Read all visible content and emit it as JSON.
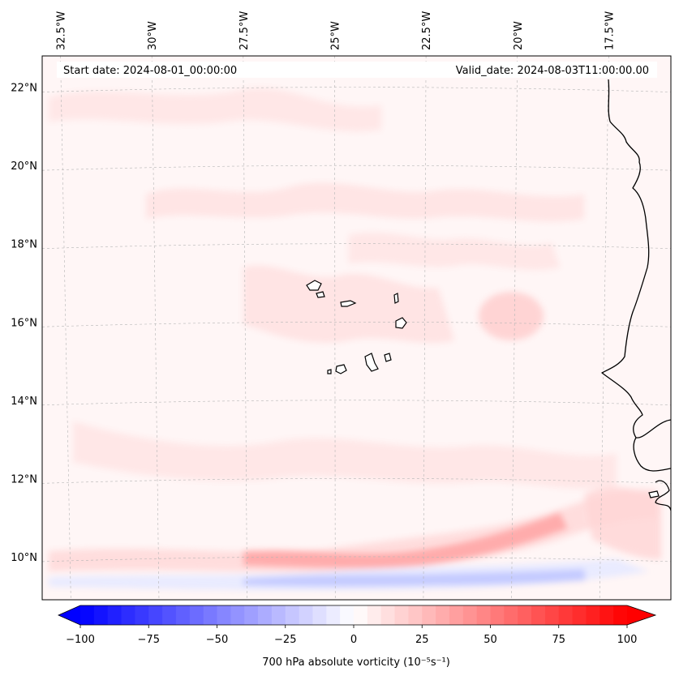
{
  "map": {
    "header": {
      "start_date": "Start date: 2024-08-01_00:00:00",
      "valid_date": "Valid_date: 2024-08-03T11:00:00.00"
    },
    "extent": {
      "lon_min": -33.0,
      "lon_max": -15.8,
      "lat_min": 8.9,
      "lat_max": 22.8
    },
    "lon_ticks": [
      {
        "value": -32.5,
        "label": "32.5°W"
      },
      {
        "value": -30.0,
        "label": "30°W"
      },
      {
        "value": -27.5,
        "label": "27.5°W"
      },
      {
        "value": -25.0,
        "label": "25°W"
      },
      {
        "value": -22.5,
        "label": "22.5°W"
      },
      {
        "value": -20.0,
        "label": "20°W"
      },
      {
        "value": -17.5,
        "label": "17.5°W"
      }
    ],
    "lat_ticks": [
      {
        "value": 22,
        "label": "22°N"
      },
      {
        "value": 20,
        "label": "20°N"
      },
      {
        "value": 18,
        "label": "18°N"
      },
      {
        "value": 16,
        "label": "16°N"
      },
      {
        "value": 14,
        "label": "14°N"
      },
      {
        "value": 12,
        "label": "12°N"
      },
      {
        "value": 10,
        "label": "10°N"
      }
    ],
    "colors": {
      "negative_extreme": "#0000ff",
      "neutral": "#ffffff",
      "positive_extreme": "#ff0000",
      "coastline": "#000000",
      "gridline": "#b5b5b5"
    }
  },
  "colorbar": {
    "min": -100,
    "max": 100,
    "ticks": [
      {
        "value": -100,
        "label": "−100"
      },
      {
        "value": -75,
        "label": "−75"
      },
      {
        "value": -50,
        "label": "−50"
      },
      {
        "value": -25,
        "label": "−25"
      },
      {
        "value": 0,
        "label": "0"
      },
      {
        "value": 25,
        "label": "25"
      },
      {
        "value": 50,
        "label": "50"
      },
      {
        "value": 75,
        "label": "75"
      },
      {
        "value": 100,
        "label": "100"
      }
    ],
    "label": "700 hPa absolute vorticity (10⁻⁵s⁻¹)",
    "extend": "both"
  }
}
